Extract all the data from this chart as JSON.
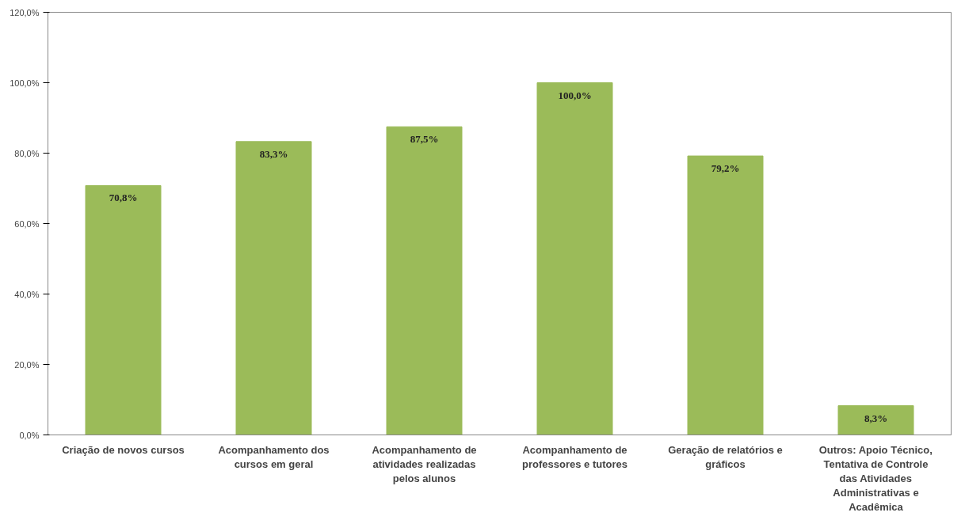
{
  "chart_data": {
    "type": "bar",
    "categories": [
      "Criação de novos cursos",
      "Acompanhamento dos cursos em geral",
      "Acompanhamento de atividades realizadas pelos alunos",
      "Acompanhamento de professores e tutores",
      "Geração de relatórios e gráficos",
      "Outros: Apoio Técnico, Tentativa de Controle das Atividades Administrativas e Acadêmica"
    ],
    "values": [
      70.8,
      83.3,
      87.5,
      100.0,
      79.2,
      8.3
    ],
    "value_labels": [
      "70,8%",
      "83,3%",
      "87,5%",
      "100,0%",
      "79,2%",
      "8,3%"
    ],
    "color": "#9bbb59",
    "ylim": [
      0,
      120
    ],
    "yticks": [
      {
        "value": 0,
        "label": "0,0%"
      },
      {
        "value": 20,
        "label": "20,0%"
      },
      {
        "value": 40,
        "label": "40,0%"
      },
      {
        "value": 60,
        "label": "60,0%"
      },
      {
        "value": 80,
        "label": "80,0%"
      },
      {
        "value": 100,
        "label": "100,0%"
      },
      {
        "value": 120,
        "label": "120,0%"
      }
    ],
    "grid": false
  }
}
